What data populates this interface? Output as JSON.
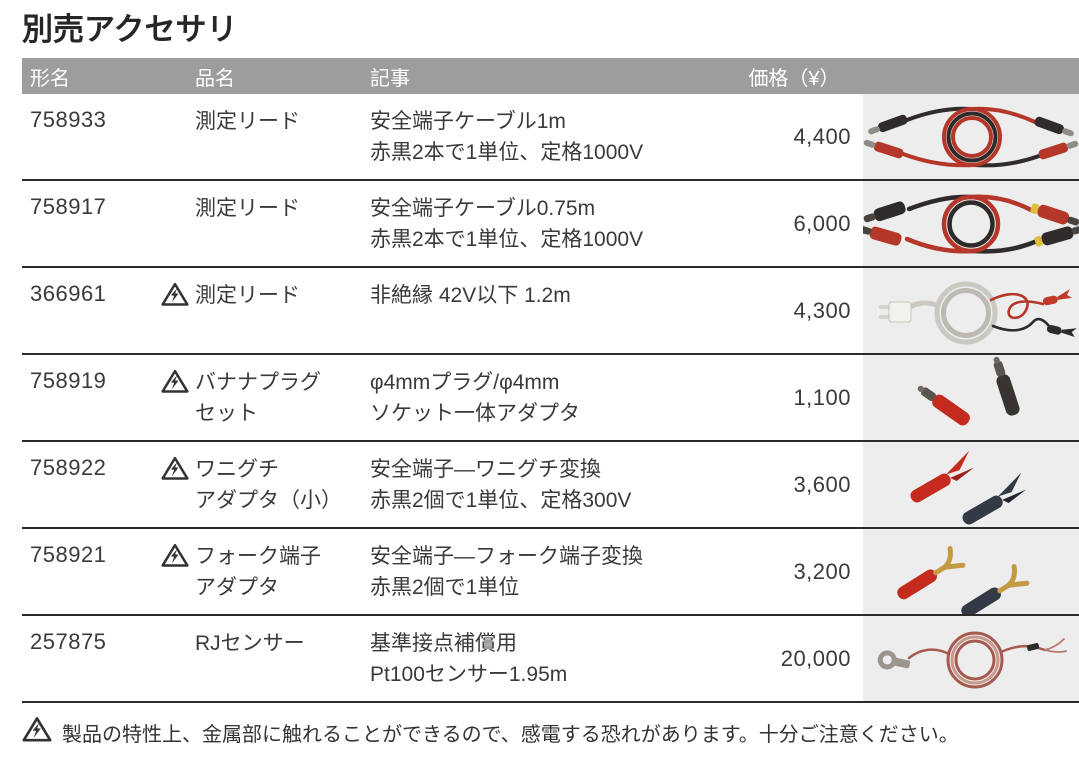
{
  "page": {
    "title": "別売アクセサリ"
  },
  "table": {
    "headers": {
      "model": "形名",
      "name": "品名",
      "desc": "記事",
      "price": "価格（¥）"
    },
    "rows": [
      {
        "model": "758933",
        "warning": false,
        "name_lines": [
          "測定リード"
        ],
        "desc_lines": [
          "安全端子ケーブル1m",
          "赤黒2本で1単位、定格1000V"
        ],
        "price": "4,400",
        "image": "test-leads-1m"
      },
      {
        "model": "758917",
        "warning": false,
        "name_lines": [
          "測定リード"
        ],
        "desc_lines": [
          "安全端子ケーブル0.75m",
          "赤黒2本で1単位、定格1000V"
        ],
        "price": "6,000",
        "image": "test-leads-075m"
      },
      {
        "model": "366961",
        "warning": true,
        "name_lines": [
          "測定リード"
        ],
        "desc_lines": [
          "非絶縁 42V以下 1.2m"
        ],
        "price": "4,300",
        "image": "uninsulated-lead"
      },
      {
        "model": "758919",
        "warning": true,
        "name_lines": [
          "バナナプラグ",
          "セット"
        ],
        "desc_lines": [
          "φ4mmプラグ/φ4mm",
          "ソケット一体アダプタ"
        ],
        "price": "1,100",
        "image": "banana-plug-set"
      },
      {
        "model": "758922",
        "warning": true,
        "name_lines": [
          "ワニグチ",
          "アダプタ（小）"
        ],
        "desc_lines": [
          "安全端子―ワニグチ変換",
          "赤黒2個で1単位、定格300V"
        ],
        "price": "3,600",
        "image": "alligator-adapter"
      },
      {
        "model": "758921",
        "warning": true,
        "name_lines": [
          "フォーク端子",
          "アダプタ"
        ],
        "desc_lines": [
          "安全端子―フォーク端子変換",
          "赤黒2個で1単位"
        ],
        "price": "3,200",
        "image": "fork-adapter"
      },
      {
        "model": "257875",
        "warning": false,
        "name_lines": [
          "RJセンサー"
        ],
        "desc_lines": [
          "基準接点補償用",
          "Pt100センサー1.95m"
        ],
        "price": "20,000",
        "image": "rj-sensor"
      }
    ]
  },
  "footer": {
    "note": "製品の特性上、金属部に触れることができるので、感電する恐れがあります。十分ご注意ください。"
  },
  "icons": {
    "warning": "electric-shock-warning-triangle-icon"
  },
  "colors": {
    "header_bg": "#9d9d9d",
    "header_text": "#ffffff",
    "image_cell_bg": "#ededed",
    "row_divider": "#2b2b2b",
    "body_text": "#3a3a3a",
    "product_red": "#c42a1d",
    "product_black": "#2e2b2a"
  }
}
